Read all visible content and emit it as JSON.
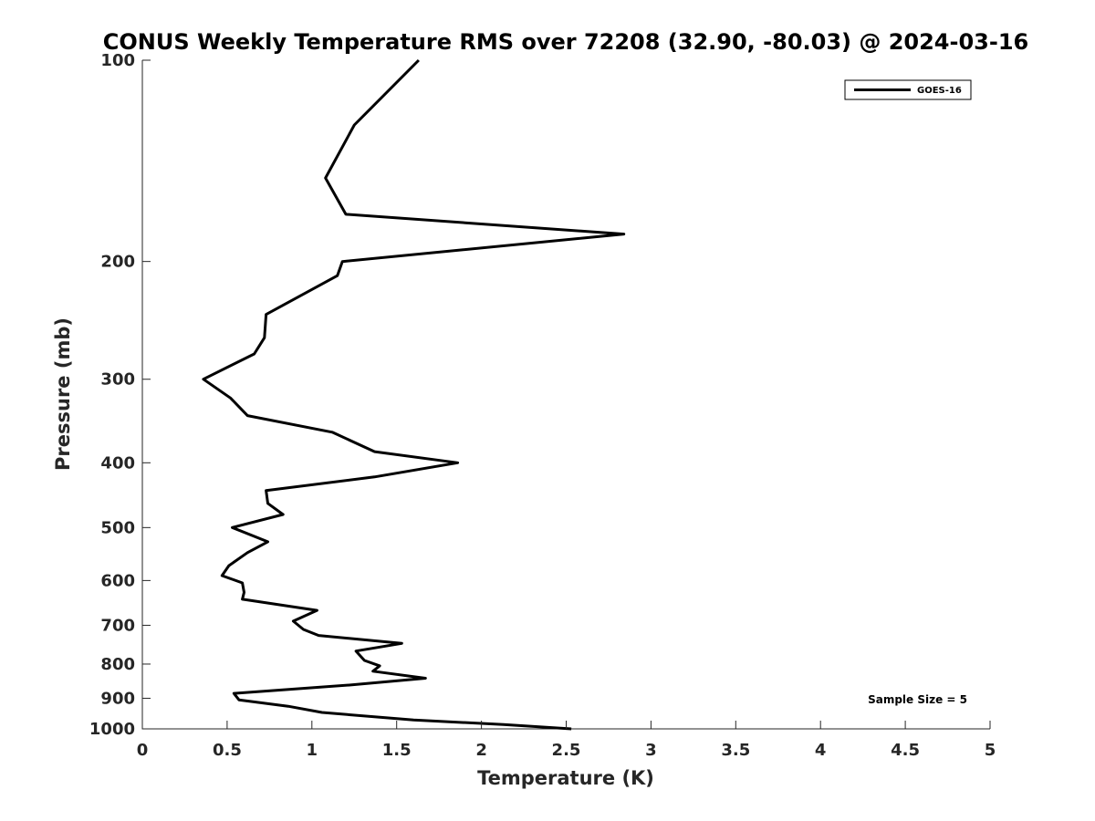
{
  "chart_data": {
    "type": "line",
    "title": "CONUS Weekly Temperature RMS over 72208 (32.90, -80.03) @ 2024-03-16",
    "xlabel": "Temperature (K)",
    "ylabel": "Pressure (mb)",
    "xlim": [
      0,
      5
    ],
    "ylim": [
      100,
      1000
    ],
    "y_scale": "log",
    "y_reversed": true,
    "x_ticks": [
      0,
      0.5,
      1,
      1.5,
      2,
      2.5,
      3,
      3.5,
      4,
      4.5,
      5
    ],
    "x_tick_labels": [
      "0",
      "0.5",
      "1",
      "1.5",
      "2",
      "2.5",
      "3",
      "3.5",
      "4",
      "4.5",
      "5"
    ],
    "y_ticks": [
      100,
      200,
      300,
      400,
      500,
      600,
      700,
      800,
      900,
      1000
    ],
    "y_tick_labels": [
      "100",
      "200",
      "300",
      "400",
      "500",
      "600",
      "700",
      "800",
      "900",
      "1000"
    ],
    "grid": false,
    "legend": {
      "position": "top-right",
      "entries": [
        "GOES-16"
      ]
    },
    "annotations": [
      "Sample Size = 5"
    ],
    "series": [
      {
        "name": "GOES-16",
        "color": "#000000",
        "points": [
          [
            1.63,
            100
          ],
          [
            1.25,
            125
          ],
          [
            1.08,
            150
          ],
          [
            1.2,
            170
          ],
          [
            2.84,
            182
          ],
          [
            1.18,
            200
          ],
          [
            1.15,
            210
          ],
          [
            0.73,
            240
          ],
          [
            0.72,
            260
          ],
          [
            0.66,
            275
          ],
          [
            0.36,
            300
          ],
          [
            0.52,
            320
          ],
          [
            0.62,
            340
          ],
          [
            1.12,
            360
          ],
          [
            1.37,
            385
          ],
          [
            1.86,
            400
          ],
          [
            1.37,
            420
          ],
          [
            0.73,
            440
          ],
          [
            0.74,
            460
          ],
          [
            0.83,
            478
          ],
          [
            0.53,
            500
          ],
          [
            0.74,
            525
          ],
          [
            0.62,
            545
          ],
          [
            0.51,
            570
          ],
          [
            0.47,
            590
          ],
          [
            0.59,
            605
          ],
          [
            0.6,
            625
          ],
          [
            0.59,
            640
          ],
          [
            1.03,
            665
          ],
          [
            0.89,
            690
          ],
          [
            0.95,
            710
          ],
          [
            1.04,
            725
          ],
          [
            1.53,
            745
          ],
          [
            1.26,
            765
          ],
          [
            1.31,
            790
          ],
          [
            1.4,
            805
          ],
          [
            1.36,
            820
          ],
          [
            1.67,
            840
          ],
          [
            1.22,
            860
          ],
          [
            0.54,
            885
          ],
          [
            0.57,
            905
          ],
          [
            0.86,
            925
          ],
          [
            1.06,
            945
          ],
          [
            1.6,
            970
          ],
          [
            2.13,
            985
          ],
          [
            2.53,
            1000
          ]
        ]
      }
    ]
  }
}
